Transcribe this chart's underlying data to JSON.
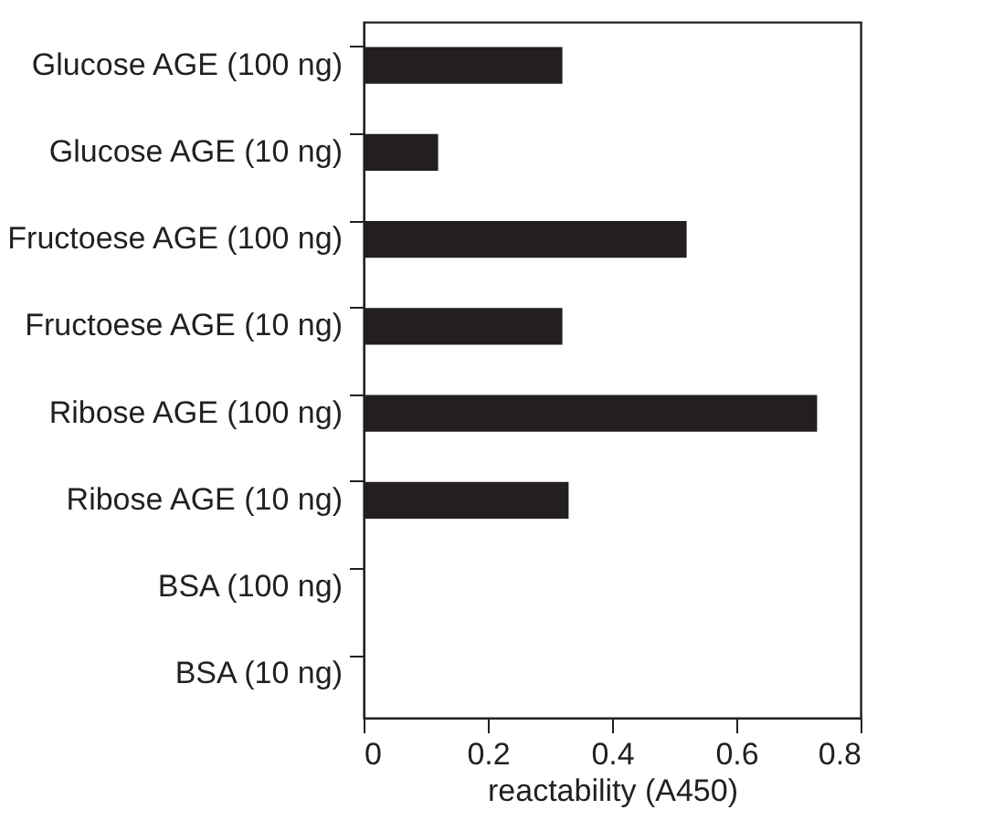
{
  "chart_data": {
    "type": "bar",
    "orientation": "horizontal",
    "xlabel": "reactability (A450)",
    "categories": [
      "Glucose AGE (100 ng)",
      "Glucose AGE (10 ng)",
      "Fructoese AGE (100 ng)",
      "Fructoese AGE (10 ng)",
      "Ribose AGE (100 ng)",
      "Ribose AGE (10 ng)",
      "BSA (100 ng)",
      "BSA (10 ng)"
    ],
    "values": [
      0.32,
      0.12,
      0.52,
      0.32,
      0.73,
      0.33,
      0,
      0
    ],
    "color": "#231f20",
    "xlim": [
      0,
      0.8
    ],
    "xticks": [
      0,
      0.2,
      0.4,
      0.6,
      0.8
    ],
    "grid": false
  }
}
